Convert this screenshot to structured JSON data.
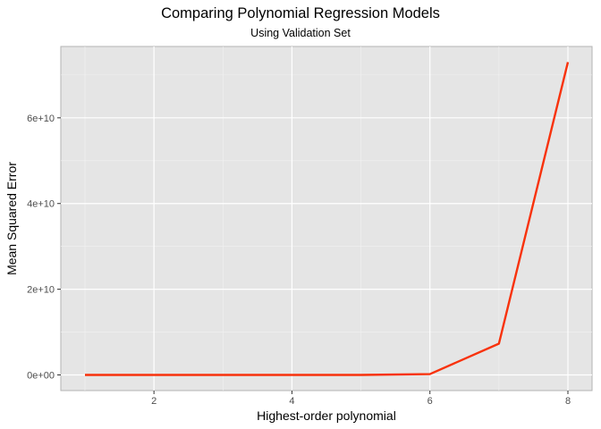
{
  "chart_data": {
    "type": "line",
    "title": "Comparing Polynomial Regression Models",
    "subtitle": "Using Validation Set",
    "xlabel": "Highest-order polynomial",
    "ylabel": "Mean Squared Error",
    "x": [
      1,
      2,
      3,
      4,
      5,
      6,
      7,
      8
    ],
    "series": [
      {
        "values": [
          0,
          0,
          0,
          0,
          0,
          200000000,
          7300000000,
          73000000000
        ],
        "color": "#f8320c"
      }
    ],
    "xlim": [
      0.65,
      8.35
    ],
    "ylim": [
      -3650000000,
      76650000000
    ],
    "xticks": [
      2,
      4,
      6,
      8
    ],
    "xtick_labels": [
      "2",
      "4",
      "6",
      "8"
    ],
    "yticks": [
      0,
      20000000000,
      40000000000,
      60000000000
    ],
    "ytick_labels": [
      "0e+00",
      "2e+10",
      "4e+10",
      "6e+10"
    ],
    "grid": true,
    "panel_background": "#e5e5e5",
    "legend": "none"
  }
}
